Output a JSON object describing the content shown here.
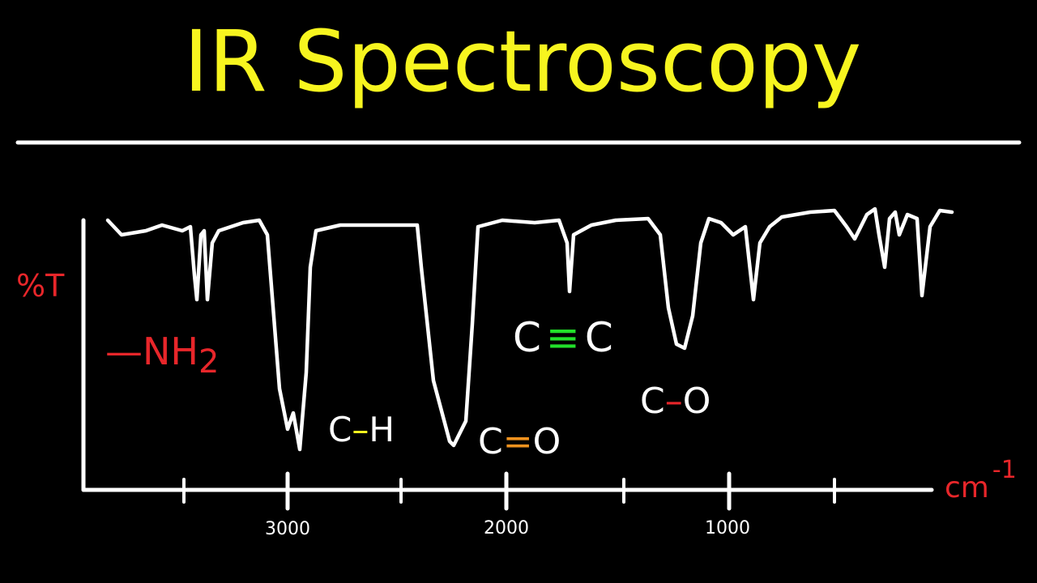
{
  "title": "IR Spectroscopy",
  "axis": {
    "y_label": "%T",
    "x_label": "cm",
    "x_label_exp": "-1",
    "ticks": [
      "3000",
      "2000",
      "1000"
    ]
  },
  "groups": {
    "amine": {
      "text": "—NH",
      "sub": "2"
    },
    "ch": {
      "left": "C",
      "bond": "–",
      "right": "H"
    },
    "co_double": {
      "left": "C",
      "bond": "=",
      "right": "O"
    },
    "cc_triple": {
      "left": "C",
      "bond": "≡",
      "right": "C"
    },
    "co_single": {
      "left": "C",
      "bond": "–",
      "right": "O"
    }
  }
}
